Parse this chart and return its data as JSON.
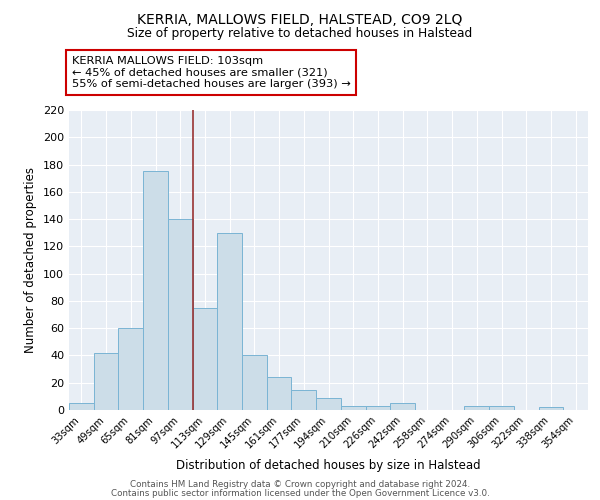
{
  "title": "KERRIA, MALLOWS FIELD, HALSTEAD, CO9 2LQ",
  "subtitle": "Size of property relative to detached houses in Halstead",
  "xlabel": "Distribution of detached houses by size in Halstead",
  "ylabel": "Number of detached properties",
  "categories": [
    "33sqm",
    "49sqm",
    "65sqm",
    "81sqm",
    "97sqm",
    "113sqm",
    "129sqm",
    "145sqm",
    "161sqm",
    "177sqm",
    "194sqm",
    "210sqm",
    "226sqm",
    "242sqm",
    "258sqm",
    "274sqm",
    "290sqm",
    "306sqm",
    "322sqm",
    "338sqm",
    "354sqm"
  ],
  "values": [
    5,
    42,
    60,
    175,
    140,
    75,
    130,
    40,
    24,
    15,
    9,
    3,
    3,
    5,
    0,
    0,
    3,
    3,
    0,
    2,
    0
  ],
  "bar_color": "#ccdde8",
  "bar_edge_color": "#7ab4d4",
  "vline_x": 4.5,
  "vline_color": "#993333",
  "annotation_text": "KERRIA MALLOWS FIELD: 103sqm\n← 45% of detached houses are smaller (321)\n55% of semi-detached houses are larger (393) →",
  "annotation_box_color": "#ffffff",
  "annotation_box_edge": "#cc0000",
  "ylim": [
    0,
    220
  ],
  "yticks": [
    0,
    20,
    40,
    60,
    80,
    100,
    120,
    140,
    160,
    180,
    200,
    220
  ],
  "plot_bg": "#e8eef5",
  "footer1": "Contains HM Land Registry data © Crown copyright and database right 2024.",
  "footer2": "Contains public sector information licensed under the Open Government Licence v3.0."
}
